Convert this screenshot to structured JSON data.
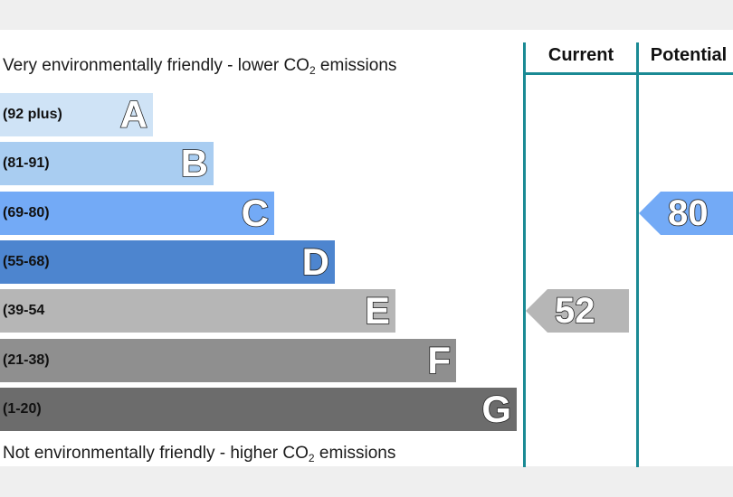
{
  "chart_data": {
    "type": "bar",
    "caption_top": {
      "text": "Very environmentally friendly - lower CO",
      "sub": "2",
      "tail": " emissions"
    },
    "caption_bottom": {
      "text": "Not environmentally friendly - higher CO",
      "sub": "2",
      "tail": " emissions"
    },
    "bands": [
      {
        "range": "(92 plus)",
        "letter": "A",
        "color": "#cfe3f6"
      },
      {
        "range": "(81-91)",
        "letter": "B",
        "color": "#a9cdf1"
      },
      {
        "range": "(69-80)",
        "letter": "C",
        "color": "#73aaf6"
      },
      {
        "range": "(55-68)",
        "letter": "D",
        "color": "#4d85cf"
      },
      {
        "range": "(39-54",
        "letter": "E",
        "color": "#b6b6b6"
      },
      {
        "range": "(21-38)",
        "letter": "F",
        "color": "#8f8f8f"
      },
      {
        "range": "(1-20)",
        "letter": "G",
        "color": "#6c6c6c"
      }
    ],
    "columns": [
      {
        "label": "Current",
        "value": 52,
        "band": "E",
        "arrow_color": "#b6b6b6"
      },
      {
        "label": "Potential",
        "value": 80,
        "band": "C",
        "arrow_color": "#73aaf6"
      }
    ],
    "line_color": "#1a8a94"
  }
}
